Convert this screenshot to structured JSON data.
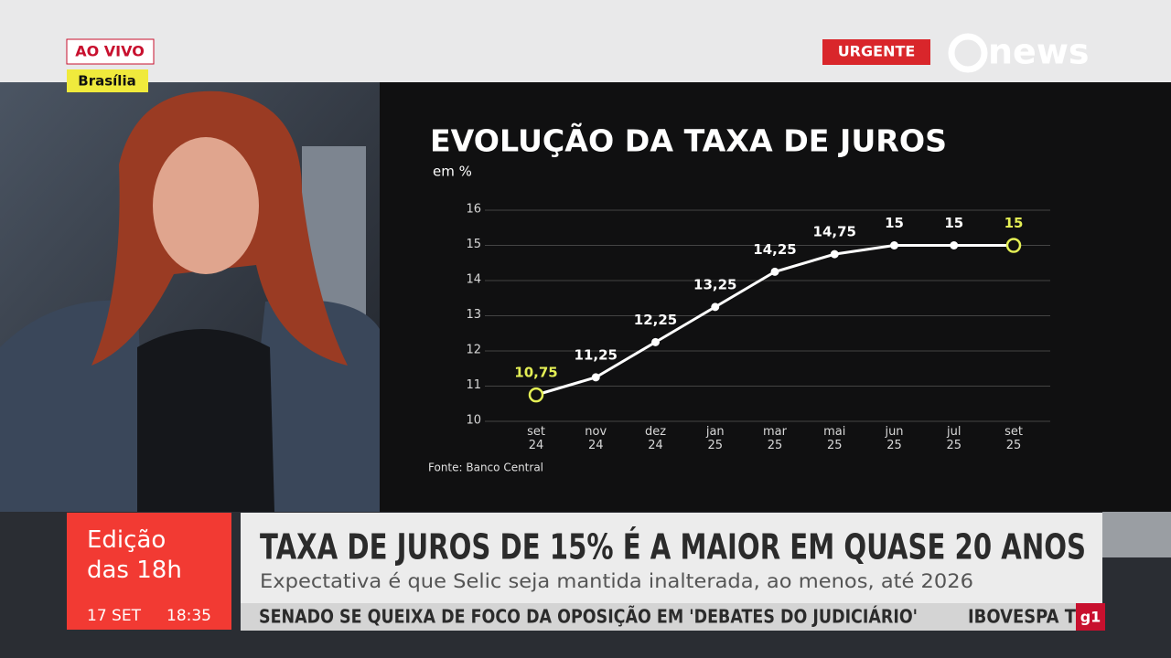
{
  "badges": {
    "live": "AO VIVO",
    "location": "Brasília",
    "urgent": "URGENTE",
    "logo": "news"
  },
  "chart_data": {
    "type": "line",
    "title": "EVOLUÇÃO DA TAXA DE JUROS",
    "y_label": "em %",
    "categories": [
      "set\n24",
      "nov\n24",
      "dez\n24",
      "jan\n25",
      "mar\n25",
      "mai\n25",
      "jun\n25",
      "jul\n25",
      "set\n25"
    ],
    "values": [
      10.75,
      11.25,
      12.25,
      13.25,
      14.25,
      14.75,
      15,
      15,
      15
    ],
    "value_labels": [
      "10,75",
      "11,25",
      "12,25",
      "13,25",
      "14,25",
      "14,75",
      "15",
      "15",
      "15"
    ],
    "color": "#ffffff",
    "highlight_color": "#e4ef55",
    "ylim": [
      10,
      16
    ],
    "yticks": [
      10,
      11,
      12,
      13,
      14,
      15,
      16
    ],
    "grid": true,
    "source": "Fonte: Banco Central"
  },
  "lower_third": {
    "program": "Edição\ndas 18h",
    "date": "17 SET",
    "time": "18:35",
    "headline": "TAXA DE JUROS DE 15% É A MAIOR EM QUASE 20 ANOS",
    "subheadline": "Expectativa é que Selic seja mantida inalterada, ao menos, até 2026",
    "ticker": "SENADO SE QUEIXA DE FOCO DA OPOSIÇÃO EM 'DEBATES DO JUDICIÁRIO'",
    "ticker_next": "IBOVESPA T",
    "ticker_logo": "g1"
  }
}
